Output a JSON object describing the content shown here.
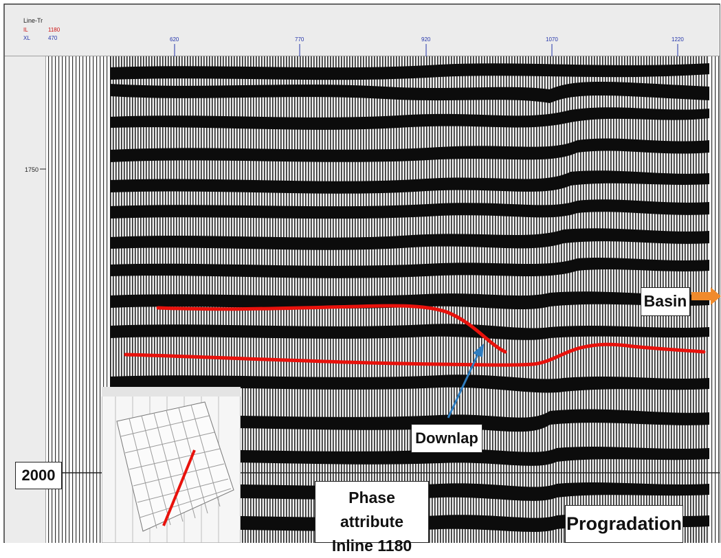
{
  "header": {
    "line_tr_label": "Line-Tr",
    "row1_label": "IL",
    "row1_value": "1180",
    "row2_label": "XL",
    "row2_value": "470",
    "trace_ticks": [
      "620",
      "770",
      "920",
      "1070",
      "1220"
    ]
  },
  "time_axis": {
    "label_1750": "1750"
  },
  "annotations": {
    "basin": "Basin",
    "downlap": "Downlap",
    "phase_line1": "Phase attribute",
    "phase_line2": "Inline 1180",
    "progradation": "Progradation",
    "depth_2000": "2000"
  },
  "colors": {
    "horizon": "#e8120c",
    "downlap_arrow": "#2f7dc0",
    "basin_arrow": "#f08a2c",
    "header_red": "#cc1111",
    "header_blue": "#2233aa"
  }
}
